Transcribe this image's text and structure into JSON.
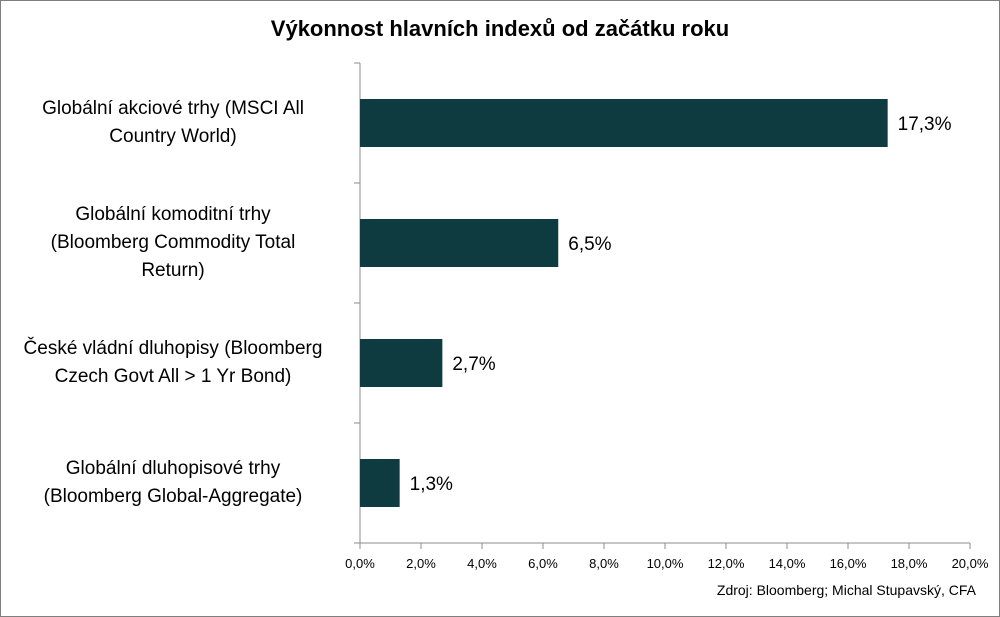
{
  "chart_data": {
    "type": "bar",
    "orientation": "horizontal",
    "title": "Výkonnost hlavních indexů od začátku roku",
    "categories": [
      "Globální akciové trhy (MSCI All Country World)",
      "Globální komoditní trhy (Bloomberg Commodity Total Return)",
      "České vládní dluhopisy (Bloomberg Czech Govt All > 1 Yr Bond)",
      "Globální dluhopisové trhy (Bloomberg Global-Aggregate)"
    ],
    "category_lines": [
      [
        "Globální akciové trhy (MSCI All",
        "Country World)"
      ],
      [
        "Globální komoditní trhy",
        "(Bloomberg Commodity Total",
        "Return)"
      ],
      [
        "České vládní dluhopisy (Bloomberg",
        "Czech Govt All > 1 Yr Bond)"
      ],
      [
        "Globální dluhopisové trhy",
        "(Bloomberg Global-Aggregate)"
      ]
    ],
    "values": [
      17.3,
      6.5,
      2.7,
      1.3
    ],
    "data_labels": [
      "17,3%",
      "6,5%",
      "2,7%",
      "1,3%"
    ],
    "xlim": [
      0,
      20
    ],
    "xticks": [
      0,
      2,
      4,
      6,
      8,
      10,
      12,
      14,
      16,
      18,
      20
    ],
    "xtick_labels": [
      "0,0%",
      "2,0%",
      "4,0%",
      "6,0%",
      "8,0%",
      "10,0%",
      "12,0%",
      "14,0%",
      "16,0%",
      "18,0%",
      "20,0%"
    ],
    "bar_color": "#0d3b40",
    "grid": false,
    "legend": "none"
  },
  "source_text": "Zdroj: Bloomberg; Michal Stupavský, CFA"
}
